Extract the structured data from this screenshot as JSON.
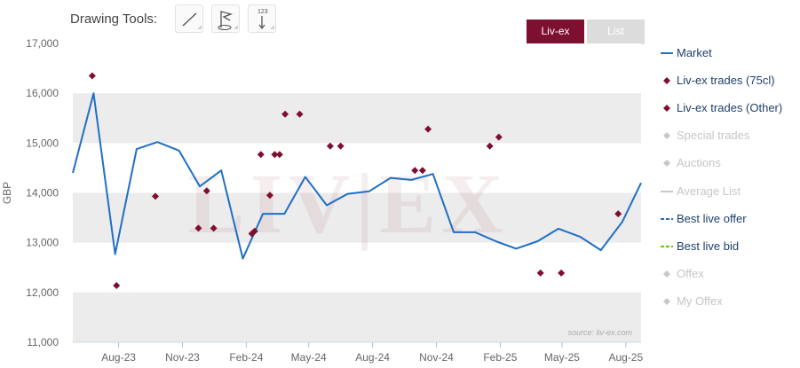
{
  "toolbar": {
    "label": "Drawing Tools:",
    "tools": [
      {
        "icon": "line-draw-icon"
      },
      {
        "icon": "flag-marker-icon"
      },
      {
        "icon": "value-label-icon",
        "text": "123"
      }
    ]
  },
  "view_tabs": [
    {
      "label": "Liv-ex",
      "active": true,
      "color": "#7d0f2f"
    },
    {
      "label": "List",
      "active": false,
      "color": "#dcdcdc"
    }
  ],
  "watermark": "LIV|EX",
  "source_text": "source: liv-ex.com",
  "legend": [
    {
      "label": "Market",
      "symbol": "line",
      "color": "#1f6fc5",
      "active": true
    },
    {
      "label": "Liv-ex trades (75cl)",
      "symbol": "diamond",
      "color": "#7d0f2f",
      "active": true
    },
    {
      "label": "Liv-ex trades (Other)",
      "symbol": "diamond",
      "color": "#7d0f2f",
      "active": true
    },
    {
      "label": "Special trades",
      "symbol": "diamond",
      "color": "#c8c8c8",
      "active": false
    },
    {
      "label": "Auctions",
      "symbol": "diamond",
      "color": "#c8c8c8",
      "active": false
    },
    {
      "label": "Average List",
      "symbol": "line",
      "color": "#c8c8c8",
      "active": false
    },
    {
      "label": "Best live offer",
      "symbol": "dashed",
      "color": "#1f6fc5",
      "active": true
    },
    {
      "label": "Best live bid",
      "symbol": "dashed",
      "color": "#5cc31f",
      "active": true
    },
    {
      "label": "Offex",
      "symbol": "diamond",
      "color": "#c8c8c8",
      "active": false
    },
    {
      "label": "My Offex",
      "symbol": "diamond",
      "color": "#c8c8c8",
      "active": false
    }
  ],
  "chart_data": {
    "type": "line",
    "ylabel": "GBP",
    "ylim": [
      11000,
      17000
    ],
    "yticks": [
      11000,
      12000,
      13000,
      14000,
      15000,
      16000,
      17000
    ],
    "ytick_labels": [
      "11,000",
      "12,000",
      "13,000",
      "14,000",
      "15,000",
      "16,000",
      "17,000"
    ],
    "xlim": [
      "2023-06-10",
      "2025-09-06"
    ],
    "xticks": [
      "2023-08-15",
      "2023-11-15",
      "2024-02-15",
      "2024-05-15",
      "2024-08-15",
      "2024-11-15",
      "2025-02-15",
      "2025-05-15",
      "2025-08-15"
    ],
    "xtick_labels": [
      "Aug-23",
      "Nov-23",
      "Feb-24",
      "May-24",
      "Aug-24",
      "Nov-24",
      "Feb-25",
      "May-25",
      "Aug-25"
    ],
    "grid": "alternating horizontal bands",
    "series": [
      {
        "name": "Market",
        "kind": "line",
        "color": "#1f6fc5",
        "x": [
          "2023-06-10",
          "2023-07-10",
          "2023-08-10",
          "2023-09-10",
          "2023-10-10",
          "2023-11-10",
          "2023-12-10",
          "2024-01-10",
          "2024-02-10",
          "2024-03-10",
          "2024-04-10",
          "2024-05-10",
          "2024-06-10",
          "2024-07-10",
          "2024-08-10",
          "2024-09-10",
          "2024-10-10",
          "2024-11-10",
          "2024-12-10",
          "2025-01-10",
          "2025-02-10",
          "2025-03-10",
          "2025-04-10",
          "2025-05-10",
          "2025-06-10",
          "2025-07-10",
          "2025-08-10",
          "2025-09-06"
        ],
        "y": [
          14400,
          16000,
          12770,
          14880,
          15020,
          14850,
          14130,
          14450,
          12680,
          13580,
          13580,
          14320,
          13750,
          13980,
          14030,
          14300,
          14260,
          14380,
          13210,
          13210,
          13020,
          12880,
          13030,
          13280,
          13120,
          12850,
          13420,
          14200
        ]
      },
      {
        "name": "Liv-ex trades (75cl)",
        "kind": "scatter",
        "color": "#7d0f2f",
        "x": [
          "2023-07-08",
          "2023-08-12",
          "2023-10-07",
          "2023-12-08",
          "2023-12-20",
          "2023-12-30",
          "2024-02-23",
          "2024-02-27",
          "2024-03-07",
          "2024-03-20",
          "2024-03-27",
          "2024-04-03",
          "2024-04-11",
          "2024-05-02",
          "2024-06-15",
          "2024-06-30",
          "2024-10-15",
          "2024-10-26",
          "2024-11-03",
          "2025-01-31",
          "2025-02-13",
          "2025-04-14",
          "2025-05-14",
          "2025-08-04"
        ],
        "y": [
          16350,
          12140,
          13930,
          13290,
          14040,
          13290,
          13180,
          13230,
          14770,
          13950,
          14770,
          14770,
          15580,
          15580,
          14940,
          14940,
          14450,
          14450,
          15280,
          14940,
          15120,
          12390,
          12390,
          13580
        ]
      }
    ]
  }
}
